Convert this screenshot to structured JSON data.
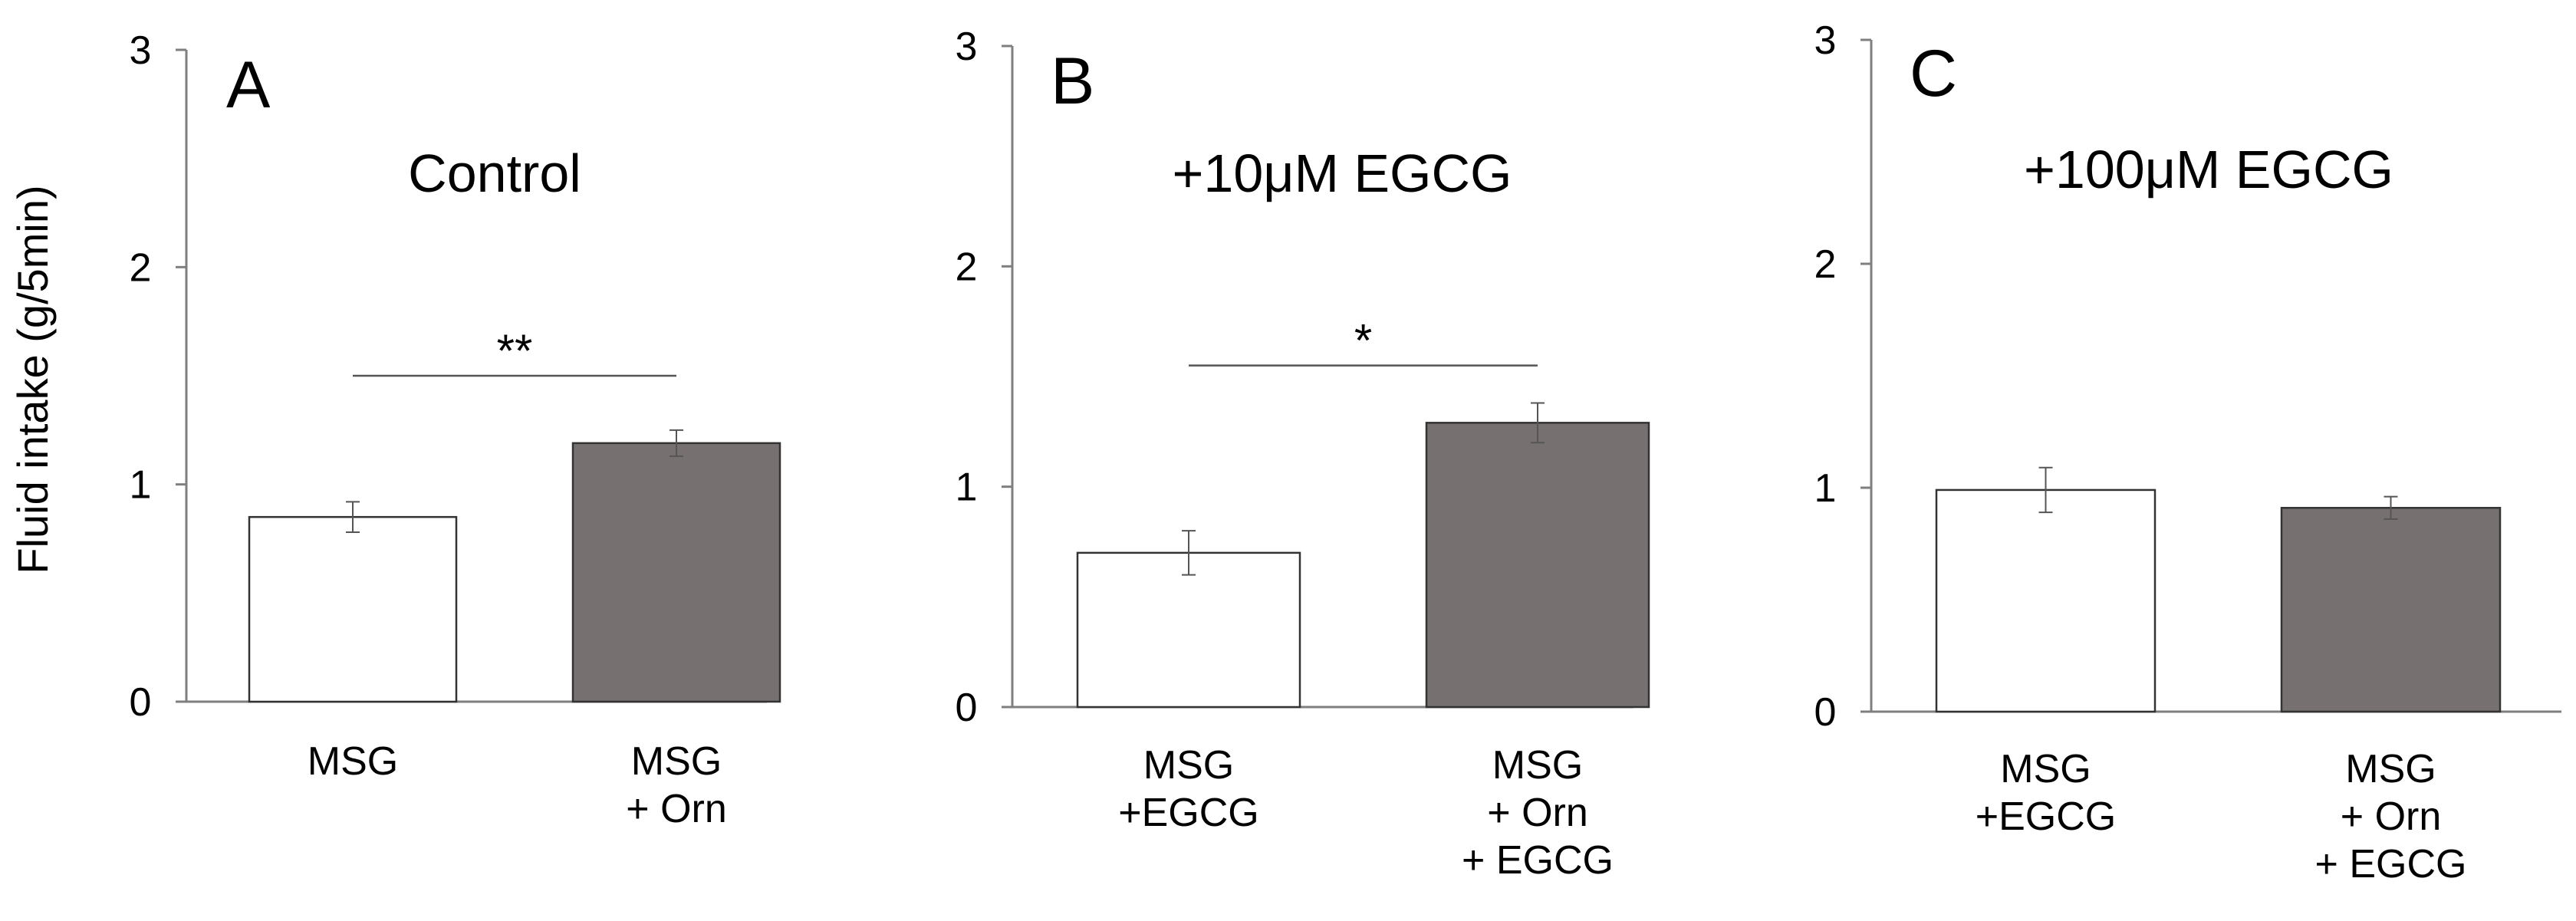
{
  "figure": {
    "ylabel": "Fluid intake (g/5min)"
  },
  "colors": {
    "bar_fill_1": "#ffffff",
    "bar_fill_2": "#767170",
    "bar_stroke": "#333333",
    "axis": "#7f7f7f"
  },
  "chart_data": [
    {
      "type": "bar",
      "panel": "A",
      "title": "Control",
      "ylabel": "Fluid intake (g/5min)",
      "ylim": [
        0,
        3
      ],
      "yticks": [
        "0",
        "1",
        "2",
        "3"
      ],
      "categories": [
        [
          "MSG"
        ],
        [
          "MSG",
          "+ Orn"
        ]
      ],
      "values": [
        0.85,
        1.19
      ],
      "errors": [
        0.07,
        0.06
      ],
      "significance": {
        "label": "**",
        "from": 0,
        "to": 1,
        "y": 1.5
      },
      "grid": false
    },
    {
      "type": "bar",
      "panel": "B",
      "title": "+10μM EGCG",
      "ylim": [
        0,
        3
      ],
      "yticks": [
        "0",
        "1",
        "2",
        "3"
      ],
      "categories": [
        [
          "MSG",
          "+EGCG"
        ],
        [
          "MSG",
          "+ Orn",
          "+ EGCG"
        ]
      ],
      "values": [
        0.7,
        1.29
      ],
      "errors": [
        0.1,
        0.09
      ],
      "significance": {
        "label": "*",
        "from": 0,
        "to": 1,
        "y": 1.55
      },
      "grid": false
    },
    {
      "type": "bar",
      "panel": "C",
      "title": "+100μM EGCG",
      "ylim": [
        0,
        3
      ],
      "yticks": [
        "0",
        "1",
        "2",
        "3"
      ],
      "categories": [
        [
          "MSG",
          "+EGCG"
        ],
        [
          "MSG",
          "+ Orn",
          "+ EGCG"
        ]
      ],
      "values": [
        0.99,
        0.91
      ],
      "errors": [
        0.1,
        0.05
      ],
      "significance": null,
      "grid": false
    }
  ]
}
